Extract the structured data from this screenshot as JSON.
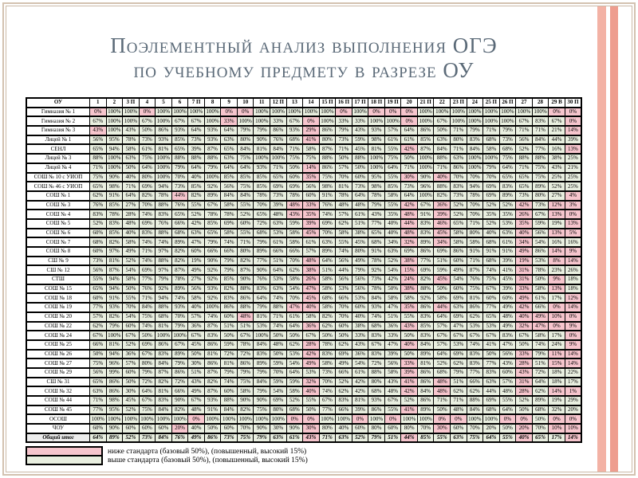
{
  "title": {
    "line1": "Поэлементный анализ выполнения ОГЭ",
    "line2": "по учебному предмету в разрезе ОУ"
  },
  "colors": {
    "below": "#f6c5cd",
    "above": "#e9efe0",
    "title": "#5b6a78",
    "frame": "#d3c2b0",
    "frame_light": "#cbb9a6",
    "stripeA": "#f3b2a5",
    "stripeB": "#ee9d8f"
  },
  "table": {
    "corner": "ОУ",
    "unit": "%",
    "thresholds": {
      "base": 50,
      "advanced": 15
    },
    "columns": [
      "1",
      "2",
      "3 П",
      "4",
      "5",
      "6",
      "7 П",
      "8",
      "9",
      "10",
      "11",
      "12 П",
      "13",
      "14",
      "15 П",
      "16 П",
      "17 П",
      "18 П",
      "19 П",
      "20",
      "21 П",
      "22",
      "23 П",
      "24",
      "25 П",
      "26 П",
      "27",
      "28",
      "29 В",
      "30 П"
    ],
    "rows": [
      {
        "name": "Гимназия № 1",
        "values": [
          0,
          100,
          100,
          0,
          100,
          100,
          100,
          100,
          0,
          0,
          100,
          100,
          100,
          100,
          100,
          0,
          100,
          0,
          0,
          0,
          100,
          100,
          100,
          100,
          100,
          100,
          100,
          100,
          0,
          0
        ]
      },
      {
        "name": "Гимназия № 2",
        "values": [
          67,
          100,
          100,
          67,
          100,
          67,
          67,
          100,
          33,
          100,
          100,
          33,
          67,
          0,
          100,
          33,
          33,
          100,
          100,
          0,
          100,
          67,
          100,
          100,
          100,
          100,
          67,
          83,
          67,
          0
        ]
      },
      {
        "name": "Гимназия № 3",
        "values": [
          43,
          100,
          43,
          50,
          86,
          93,
          64,
          93,
          64,
          79,
          79,
          86,
          93,
          29,
          86,
          79,
          43,
          93,
          57,
          64,
          86,
          50,
          71,
          79,
          71,
          79,
          71,
          71,
          21,
          14
        ]
      },
      {
        "name": "Лицей № 1",
        "values": [
          56,
          95,
          78,
          73,
          93,
          85,
          73,
          93,
          63,
          80,
          90,
          76,
          68,
          41,
          80,
          73,
          59,
          98,
          61,
          61,
          85,
          63,
          80,
          83,
          68,
          73,
          56,
          84,
          44,
          39
        ]
      },
      {
        "name": "СЕНЛ",
        "values": [
          65,
          94,
          58,
          61,
          81,
          65,
          39,
          87,
          65,
          84,
          81,
          84,
          71,
          58,
          87,
          71,
          45,
          81,
          55,
          42,
          87,
          84,
          71,
          84,
          58,
          68,
          52,
          77,
          16,
          13
        ]
      },
      {
        "name": "Лицей № 3",
        "values": [
          88,
          100,
          63,
          75,
          100,
          88,
          88,
          88,
          63,
          75,
          100,
          100,
          75,
          75,
          88,
          50,
          88,
          100,
          75,
          50,
          100,
          88,
          63,
          100,
          100,
          75,
          88,
          88,
          38,
          25
        ]
      },
      {
        "name": "Лицей № 4",
        "values": [
          71,
          100,
          50,
          64,
          100,
          79,
          64,
          79,
          64,
          64,
          93,
          71,
          50,
          14,
          86,
          57,
          50,
          100,
          64,
          71,
          100,
          71,
          86,
          100,
          79,
          64,
          71,
          75,
          43,
          21
        ]
      },
      {
        "name": "СОШ № 10 с УИОП",
        "values": [
          75,
          90,
          40,
          80,
          100,
          70,
          40,
          100,
          85,
          85,
          85,
          65,
          60,
          35,
          75,
          70,
          60,
          95,
          55,
          30,
          90,
          40,
          70,
          70,
          70,
          65,
          65,
          75,
          25,
          25
        ]
      },
      {
        "name": "СОШ № 46 с УИОП",
        "values": [
          65,
          98,
          71,
          69,
          94,
          73,
          85,
          92,
          56,
          75,
          85,
          69,
          69,
          56,
          98,
          81,
          73,
          98,
          85,
          73,
          96,
          88,
          83,
          94,
          69,
          83,
          65,
          89,
          52,
          25
        ]
      },
      {
        "name": "СОШ № 1",
        "values": [
          62,
          91,
          64,
          82,
          78,
          44,
          82,
          89,
          84,
          84,
          78,
          73,
          78,
          60,
          91,
          78,
          64,
          78,
          58,
          64,
          100,
          82,
          73,
          78,
          69,
          89,
          73,
          80,
          27,
          4
        ]
      },
      {
        "name": "СОШ № 3",
        "values": [
          76,
          85,
          27,
          70,
          88,
          76,
          55,
          67,
          58,
          55,
          70,
          39,
          48,
          33,
          76,
          48,
          48,
          79,
          55,
          42,
          67,
          36,
          52,
          70,
          52,
          52,
          42,
          73,
          12,
          3
        ]
      },
      {
        "name": "СОШ № 4",
        "values": [
          83,
          78,
          28,
          74,
          83,
          65,
          52,
          78,
          78,
          52,
          65,
          48,
          43,
          35,
          74,
          57,
          61,
          43,
          35,
          48,
          91,
          39,
          52,
          70,
          35,
          35,
          26,
          67,
          13,
          0
        ]
      },
      {
        "name": "СОШ № 5",
        "values": [
          52,
          83,
          48,
          69,
          76,
          66,
          42,
          85,
          69,
          60,
          72,
          63,
          59,
          39,
          69,
          62,
          51,
          77,
          40,
          44,
          83,
          46,
          65,
          71,
          52,
          53,
          35,
          59,
          19,
          13
        ]
      },
      {
        "name": "СОШ № 6",
        "values": [
          60,
          85,
          40,
          83,
          88,
          68,
          63,
          65,
          58,
          55,
          68,
          53,
          58,
          45,
          70,
          58,
          38,
          65,
          40,
          48,
          83,
          45,
          58,
          80,
          40,
          63,
          40,
          56,
          13,
          5
        ]
      },
      {
        "name": "СОШ № 7",
        "values": [
          68,
          82,
          58,
          74,
          74,
          89,
          47,
          79,
          74,
          71,
          79,
          61,
          58,
          61,
          63,
          55,
          45,
          68,
          34,
          32,
          89,
          34,
          58,
          58,
          68,
          61,
          34,
          54,
          16,
          16
        ]
      },
      {
        "name": "СОШ № 8",
        "values": [
          60,
          97,
          49,
          71,
          97,
          82,
          60,
          66,
          66,
          80,
          89,
          66,
          66,
          57,
          89,
          74,
          80,
          91,
          63,
          69,
          86,
          69,
          86,
          91,
          91,
          91,
          49,
          86,
          14,
          9
        ]
      },
      {
        "name": "СШ № 9",
        "values": [
          73,
          81,
          52,
          74,
          88,
          82,
          19,
          90,
          79,
          82,
          77,
          51,
          70,
          48,
          64,
          56,
          49,
          78,
          52,
          38,
          77,
          51,
          60,
          71,
          68,
          39,
          19,
          53,
          8,
          14
        ]
      },
      {
        "name": "СШ № 12",
        "values": [
          56,
          87,
          54,
          69,
          97,
          87,
          49,
          92,
          79,
          87,
          90,
          64,
          62,
          38,
          51,
          44,
          79,
          92,
          54,
          15,
          69,
          59,
          49,
          87,
          74,
          41,
          31,
          78,
          23,
          26
        ]
      },
      {
        "name": "СТШ",
        "values": [
          55,
          94,
          58,
          77,
          79,
          78,
          27,
          92,
          85,
          90,
          76,
          53,
          58,
          26,
          58,
          56,
          56,
          73,
          42,
          24,
          82,
          45,
          54,
          76,
          75,
          45,
          31,
          50,
          9,
          18
        ]
      },
      {
        "name": "СОШ № 15",
        "values": [
          65,
          94,
          50,
          76,
          92,
          89,
          56,
          93,
          82,
          88,
          83,
          63,
          54,
          47,
          58,
          53,
          56,
          78,
          50,
          38,
          88,
          50,
          60,
          75,
          67,
          39,
          33,
          58,
          13,
          18
        ]
      },
      {
        "name": "СОШ № 18",
        "values": [
          60,
          91,
          55,
          71,
          94,
          74,
          58,
          92,
          83,
          86,
          64,
          74,
          70,
          45,
          68,
          66,
          53,
          84,
          58,
          58,
          92,
          58,
          69,
          81,
          60,
          60,
          49,
          61,
          17,
          12
        ]
      },
      {
        "name": "СОШ № 19",
        "values": [
          77,
          93,
          70,
          84,
          88,
          93,
          40,
          100,
          86,
          88,
          79,
          88,
          47,
          40,
          58,
          70,
          60,
          93,
          47,
          35,
          86,
          44,
          63,
          86,
          77,
          49,
          42,
          66,
          0,
          14
        ]
      },
      {
        "name": "СОШ № 20",
        "values": [
          57,
          82,
          54,
          75,
          68,
          70,
          57,
          74,
          60,
          48,
          81,
          71,
          61,
          58,
          82,
          70,
          40,
          74,
          51,
          55,
          83,
          64,
          69,
          62,
          65,
          48,
          40,
          49,
          10,
          0
        ]
      },
      {
        "name": "СОШ № 22",
        "values": [
          62,
          79,
          60,
          74,
          81,
          79,
          36,
          87,
          51,
          51,
          53,
          74,
          64,
          36,
          62,
          60,
          38,
          68,
          36,
          43,
          85,
          57,
          47,
          53,
          53,
          49,
          32,
          47,
          0,
          9
        ]
      },
      {
        "name": "СОШ № 24",
        "values": [
          67,
          100,
          67,
          50,
          100,
          100,
          67,
          83,
          50,
          67,
          100,
          50,
          50,
          67,
          50,
          50,
          33,
          83,
          33,
          50,
          83,
          67,
          67,
          67,
          67,
          83,
          67,
          58,
          17,
          0
        ]
      },
      {
        "name": "СОШ № 25",
        "values": [
          66,
          81,
          52,
          69,
          86,
          67,
          45,
          86,
          59,
          78,
          84,
          48,
          62,
          28,
          78,
          62,
          43,
          67,
          47,
          40,
          84,
          57,
          53,
          74,
          41,
          47,
          50,
          74,
          24,
          9
        ]
      },
      {
        "name": "СОШ № 26",
        "values": [
          50,
          94,
          36,
          67,
          83,
          89,
          50,
          81,
          72,
          72,
          83,
          50,
          53,
          42,
          83,
          69,
          36,
          83,
          39,
          50,
          89,
          64,
          69,
          83,
          50,
          56,
          33,
          79,
          11,
          14
        ]
      },
      {
        "name": "СОШ № 27",
        "values": [
          75,
          96,
          57,
          80,
          84,
          79,
          30,
          86,
          81,
          86,
          89,
          59,
          54,
          49,
          58,
          49,
          54,
          72,
          56,
          33,
          81,
          52,
          62,
          83,
          77,
          43,
          28,
          51,
          15,
          14
        ]
      },
      {
        "name": "СОШ № 29",
        "values": [
          56,
          99,
          60,
          79,
          87,
          86,
          51,
          87,
          79,
          79,
          79,
          70,
          64,
          53,
          73,
          66,
          61,
          88,
          58,
          39,
          86,
          68,
          79,
          77,
          83,
          60,
          43,
          72,
          18,
          22
        ]
      },
      {
        "name": "СШ № 31",
        "values": [
          65,
          86,
          50,
          72,
          82,
          72,
          43,
          82,
          74,
          75,
          84,
          59,
          59,
          32,
          70,
          52,
          42,
          80,
          43,
          41,
          86,
          48,
          51,
          66,
          63,
          57,
          31,
          64,
          18,
          17
        ]
      },
      {
        "name": "СОШ № 32",
        "values": [
          63,
          86,
          30,
          64,
          81,
          66,
          49,
          87,
          60,
          58,
          79,
          54,
          58,
          40,
          74,
          62,
          42,
          68,
          48,
          42,
          84,
          48,
          62,
          62,
          44,
          48,
          28,
          62,
          14,
          1
        ]
      },
      {
        "name": "СОШ № 44",
        "values": [
          71,
          98,
          45,
          67,
          83,
          90,
          67,
          93,
          88,
          90,
          90,
          69,
          52,
          55,
          67,
          83,
          81,
          93,
          67,
          52,
          86,
          71,
          71,
          88,
          69,
          55,
          52,
          89,
          19,
          29
        ]
      },
      {
        "name": "СОШ № 45",
        "values": [
          77,
          95,
          52,
          75,
          84,
          82,
          48,
          91,
          84,
          82,
          75,
          80,
          68,
          50,
          77,
          66,
          39,
          86,
          55,
          41,
          89,
          50,
          48,
          84,
          68,
          64,
          50,
          68,
          32,
          20
        ]
      },
      {
        "name": "ОСОШ",
        "values": [
          100,
          100,
          100,
          100,
          100,
          100,
          0,
          100,
          100,
          100,
          100,
          100,
          0,
          0,
          100,
          100,
          0,
          100,
          0,
          100,
          100,
          0,
          0,
          100,
          100,
          0,
          0,
          50,
          0,
          0
        ]
      },
      {
        "name": "ЧОУ",
        "values": [
          60,
          90,
          60,
          60,
          60,
          20,
          40,
          50,
          60,
          70,
          90,
          30,
          90,
          30,
          80,
          40,
          60,
          80,
          60,
          80,
          70,
          30,
          60,
          70,
          20,
          50,
          20,
          70,
          10,
          10
        ]
      }
    ],
    "total_row": {
      "name": "Общий итог",
      "values": [
        64,
        89,
        52,
        73,
        84,
        76,
        49,
        86,
        73,
        75,
        79,
        63,
        61,
        43,
        71,
        63,
        52,
        79,
        51,
        44,
        85,
        55,
        63,
        75,
        64,
        55,
        40,
        65,
        17,
        14
      ]
    }
  },
  "legend": [
    {
      "color": "#f6c5cd",
      "label": "ниже стандарта (базовый 50%), (повышенный, высокий 15%)"
    },
    {
      "color": "#e9efe0",
      "label": "выше стандарта (базовый 50%), (повышенный, высокий 15%)"
    }
  ]
}
